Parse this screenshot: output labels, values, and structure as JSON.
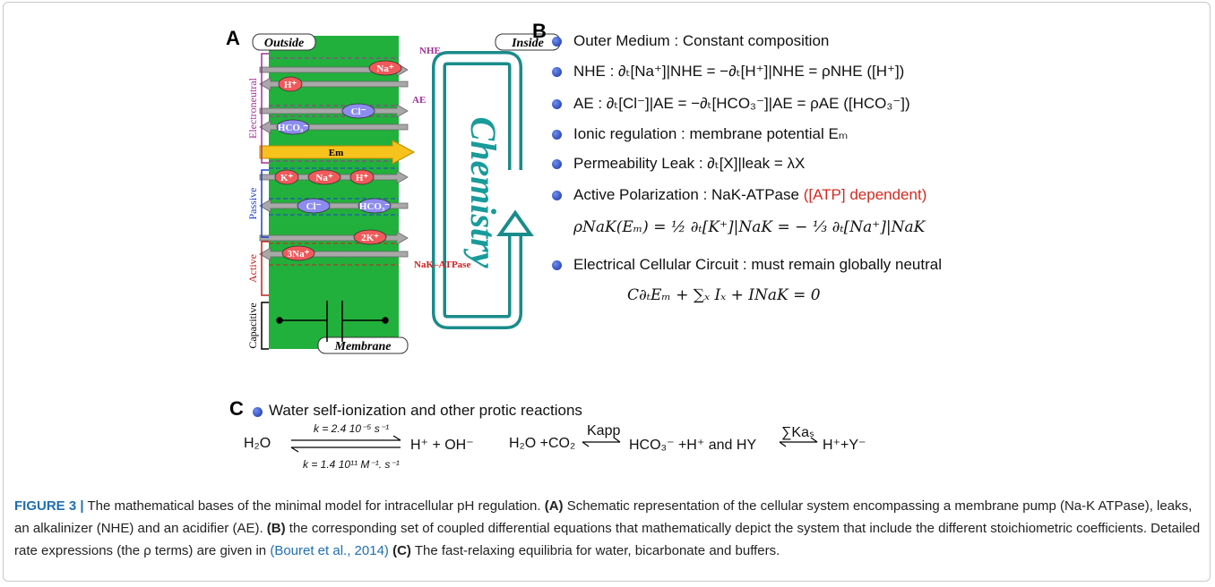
{
  "panel_a": {
    "label": "A",
    "outside": "Outside",
    "inside": "Inside",
    "membrane": "Membrane",
    "chemistry": "Chemistry",
    "groups": [
      "Electroneutral",
      "Passive",
      "Active",
      "Capacitive"
    ],
    "transporters": [
      "NHE",
      "AE",
      "NaK–ATPase"
    ],
    "ions": [
      "Na⁺",
      "H⁺",
      "Cl⁻",
      "HCO₃⁻",
      "Em",
      "K⁺",
      "Na⁺",
      "H⁺",
      "Cl⁻",
      "HCO₃⁻",
      "2K⁺",
      "3Na⁺"
    ]
  },
  "panel_b": {
    "label": "B",
    "items": [
      "Outer Medium : Constant composition",
      "NHE : ∂ₜ[Na⁺]|NHE = −∂ₜ[H⁺]|NHE = ρNHE ([H⁺])",
      "AE : ∂ₜ[Cl⁻]|AE = −∂ₜ[HCO₃⁻]|AE = ρAE ([HCO₃⁻])",
      "Ionic regulation : membrane potential Eₘ",
      "Permeability Leak : ∂ₜ[X]|leak = λX",
      "Active Polarization : NaK-ATPase",
      "Electrical Cellular Circuit : must remain globally neutral"
    ],
    "atp_note": "([ATP] dependent)",
    "formulas": [
      "ρNaK(Eₘ) = ½ ∂ₜ[K⁺]|NaK = − ⅓ ∂ₜ[Na⁺]|NaK",
      "C∂ₜEₘ + ∑ₓ Iₓ + INaK = 0"
    ]
  },
  "panel_c": {
    "label": "C",
    "heading": "Water self-ionization and other protic reactions",
    "water": {
      "reactant": "H₂O",
      "forward": "k = 2.4 10⁻⁵ s⁻¹",
      "backward": "k = 1.4 10¹¹ M⁻¹. s⁻¹",
      "products": "H⁺ + OH⁻"
    },
    "carbonate": {
      "reactant": "H₂O +CO₂",
      "constant": "Kapp",
      "products": "HCO₃⁻ +H⁺ and HY",
      "buffer_constant": "∑Kaₛ",
      "buffer_products": "H⁺+Y⁻"
    }
  },
  "caption": {
    "label": "FIGURE 3 |",
    "parts": [
      "The mathematical bases of the minimal model for intracellular pH regulation.",
      "(A)",
      "Schematic representation of the cellular system encompassing a membrane pump (Na-K ATPase), leaks, an alkalinizer (NHE) and an acidifier (AE).",
      "(B)",
      "the corresponding set of coupled differential equations that mathematically depict the system that include the different stoichiometric coefficients. Detailed rate expressions (the ρ terms) are given in",
      "(Bouret et al., 2014)",
      "(C)",
      "The fast-relaxing equilibria for water, bicarbonate and buffers."
    ]
  }
}
